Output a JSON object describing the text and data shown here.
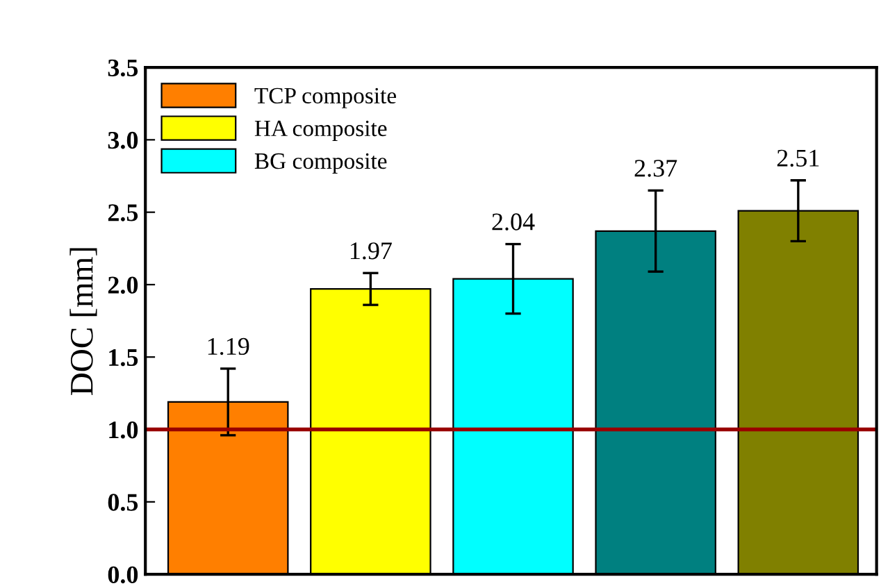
{
  "chart_data": {
    "type": "bar",
    "ylabel": "DOC [mm]",
    "categories": [
      null,
      null,
      null,
      null,
      null
    ],
    "series": [
      {
        "name": "TCP composite",
        "color": "#ff7f00",
        "values": [
          1.19,
          null,
          null,
          null,
          null
        ],
        "errors": [
          0.23,
          null,
          null,
          null,
          null
        ]
      },
      {
        "name": "HA composite",
        "color": "#ffff00",
        "values": [
          null,
          1.97,
          null,
          null,
          null
        ],
        "errors": [
          null,
          0.11,
          null,
          null,
          null
        ]
      },
      {
        "name": "BG composite",
        "color": "#00ffff",
        "values": [
          null,
          null,
          2.04,
          null,
          null
        ],
        "errors": [
          null,
          null,
          0.24,
          null,
          null
        ]
      },
      {
        "color": "#008080",
        "values": [
          null,
          null,
          null,
          2.37,
          null
        ],
        "errors": [
          null,
          null,
          null,
          0.28,
          null
        ]
      },
      {
        "color": "#808000",
        "values": [
          null,
          null,
          null,
          null,
          2.51
        ],
        "errors": [
          null,
          null,
          null,
          null,
          0.21
        ]
      }
    ],
    "ylim": [
      0,
      3.5
    ],
    "yticks": [
      {
        "value": 0,
        "label": "0.0"
      },
      {
        "value": 0.5,
        "label": "0.5"
      },
      {
        "value": 1,
        "label": "1.0"
      },
      {
        "value": 1.5,
        "label": "1.5"
      },
      {
        "value": 2,
        "label": "2.0"
      },
      {
        "value": 2.5,
        "label": "2.5"
      },
      {
        "value": 3,
        "label": "3.0"
      },
      {
        "value": 3.5,
        "label": "3.5"
      }
    ],
    "ref_lines": [
      {
        "axis": "y",
        "value": 1.0,
        "color": "#990000",
        "line_style": "solid"
      }
    ],
    "data_labels": true,
    "legend": "top left",
    "tick_labels": "y",
    "grid": false
  }
}
